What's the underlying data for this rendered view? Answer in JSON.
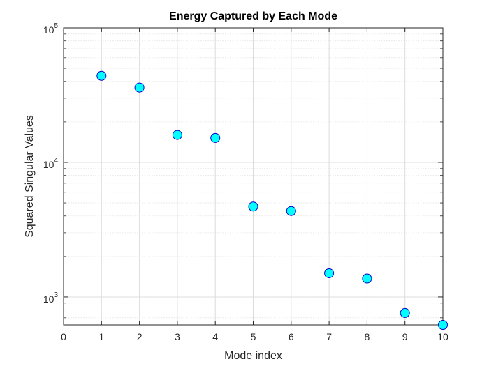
{
  "chart_data": {
    "type": "scatter",
    "title": "Energy Captured by Each Mode",
    "xlabel": "Mode index",
    "ylabel": "Squared Singular Values",
    "x": [
      1,
      2,
      3,
      4,
      5,
      6,
      7,
      8,
      9,
      10
    ],
    "y": [
      44000,
      36000,
      16000,
      15200,
      4700,
      4350,
      1500,
      1370,
      760,
      620
    ],
    "xlim": [
      0,
      10
    ],
    "ylim": [
      620,
      100000
    ],
    "yscale": "log",
    "x_ticks": [
      "0",
      "1",
      "2",
      "3",
      "4",
      "5",
      "6",
      "7",
      "8",
      "9",
      "10"
    ],
    "y_ticks": [
      {
        "base": "10",
        "exp": "3",
        "value": 1000
      },
      {
        "base": "10",
        "exp": "4",
        "value": 10000
      },
      {
        "base": "10",
        "exp": "5",
        "value": 100000
      }
    ],
    "grid": true,
    "minor_grid": true,
    "marker_face_color": "#00ffff",
    "marker_edge_color": "#0000cc",
    "axes_color": "#262626"
  }
}
